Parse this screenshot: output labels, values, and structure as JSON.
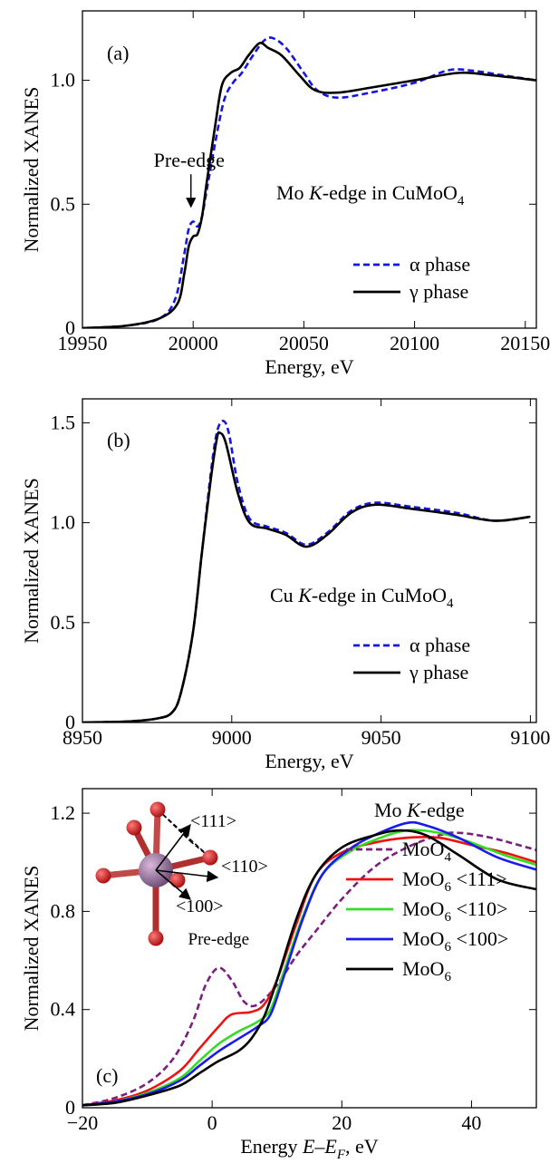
{
  "charts": [
    {
      "id": "a",
      "panel_label": "(a)",
      "type": "line",
      "xlabel": "Energy, eV",
      "ylabel": "Normalized XANES",
      "xlim": [
        19950,
        20155
      ],
      "ylim": [
        0,
        1.28
      ],
      "xticks": [
        19950,
        20000,
        20050,
        20100,
        20150
      ],
      "xtick_labels": [
        "19950",
        "20000",
        "20050",
        "20100",
        "20150"
      ],
      "yticks": [
        0,
        0.5,
        1.0
      ],
      "ytick_labels": [
        "0",
        "0.5",
        "1.0"
      ],
      "text": {
        "prefix": "Mo ",
        "italic": "K",
        "mid": "-edge in CuMoO",
        "sub": "4"
      },
      "annotation": {
        "text": "Pre-edge",
        "x": 19999,
        "y": 0.46
      },
      "legend": [
        {
          "greek": "α",
          "label": " phase",
          "color": "#1515e0",
          "dash": true
        },
        {
          "greek": "γ",
          "label": " phase",
          "color": "#000000",
          "dash": false
        }
      ],
      "series": [
        {
          "name": "α phase",
          "color": "#1515e0",
          "dash": true,
          "points": [
            [
              19950,
              0
            ],
            [
              19970,
              0.01
            ],
            [
              19985,
              0.04
            ],
            [
              19992,
              0.12
            ],
            [
              19996,
              0.3
            ],
            [
              19998,
              0.4
            ],
            [
              20000,
              0.43
            ],
            [
              20002,
              0.41
            ],
            [
              20004,
              0.45
            ],
            [
              20006,
              0.55
            ],
            [
              20010,
              0.75
            ],
            [
              20014,
              0.92
            ],
            [
              20018,
              0.99
            ],
            [
              20022,
              1.03
            ],
            [
              20027,
              1.1
            ],
            [
              20032,
              1.16
            ],
            [
              20036,
              1.17
            ],
            [
              20042,
              1.13
            ],
            [
              20050,
              1.03
            ],
            [
              20056,
              0.96
            ],
            [
              20065,
              0.93
            ],
            [
              20080,
              0.95
            ],
            [
              20100,
              0.99
            ],
            [
              20115,
              1.04
            ],
            [
              20125,
              1.04
            ],
            [
              20140,
              1.02
            ],
            [
              20155,
              1.0
            ]
          ]
        },
        {
          "name": "γ phase",
          "color": "#000000",
          "dash": false,
          "points": [
            [
              19950,
              0
            ],
            [
              19970,
              0.01
            ],
            [
              19985,
              0.04
            ],
            [
              19993,
              0.1
            ],
            [
              19996,
              0.22
            ],
            [
              19998,
              0.33
            ],
            [
              20000,
              0.37
            ],
            [
              20002,
              0.38
            ],
            [
              20004,
              0.45
            ],
            [
              20006,
              0.58
            ],
            [
              20010,
              0.82
            ],
            [
              20013,
              0.98
            ],
            [
              20017,
              1.03
            ],
            [
              20021,
              1.05
            ],
            [
              20025,
              1.1
            ],
            [
              20030,
              1.15
            ],
            [
              20034,
              1.13
            ],
            [
              20040,
              1.1
            ],
            [
              20048,
              1.02
            ],
            [
              20055,
              0.96
            ],
            [
              20065,
              0.95
            ],
            [
              20080,
              0.97
            ],
            [
              20100,
              1.0
            ],
            [
              20120,
              1.03
            ],
            [
              20135,
              1.02
            ],
            [
              20155,
              1.0
            ]
          ]
        }
      ]
    },
    {
      "id": "b",
      "panel_label": "(b)",
      "type": "line",
      "xlabel": "Energy, eV",
      "ylabel": "Normalized XANES",
      "xlim": [
        8950,
        9102
      ],
      "ylim": [
        0,
        1.62
      ],
      "xticks": [
        8950,
        9000,
        9050,
        9100
      ],
      "xtick_labels": [
        "8950",
        "9000",
        "9050",
        "9100"
      ],
      "yticks": [
        0,
        0.5,
        1.0,
        1.5
      ],
      "ytick_labels": [
        "0",
        "0.5",
        "1.0",
        "1.5"
      ],
      "text": {
        "prefix": "Cu ",
        "italic": "K",
        "mid": "-edge in CuMoO",
        "sub": "4"
      },
      "legend": [
        {
          "greek": "α",
          "label": " phase",
          "color": "#1515e0",
          "dash": true
        },
        {
          "greek": "γ",
          "label": " phase",
          "color": "#000000",
          "dash": false
        }
      ],
      "series": [
        {
          "name": "α phase",
          "color": "#1515e0",
          "dash": true,
          "points": [
            [
              8950,
              0
            ],
            [
              8965,
              0.005
            ],
            [
              8975,
              0.02
            ],
            [
              8980,
              0.05
            ],
            [
              8983,
              0.15
            ],
            [
              8987,
              0.45
            ],
            [
              8990,
              0.85
            ],
            [
              8993,
              1.25
            ],
            [
              8995,
              1.45
            ],
            [
              8997,
              1.51
            ],
            [
              8999,
              1.45
            ],
            [
              9002,
              1.2
            ],
            [
              9006,
              1.02
            ],
            [
              9012,
              0.98
            ],
            [
              9018,
              0.95
            ],
            [
              9025,
              0.89
            ],
            [
              9032,
              0.95
            ],
            [
              9040,
              1.06
            ],
            [
              9048,
              1.1
            ],
            [
              9060,
              1.08
            ],
            [
              9075,
              1.05
            ],
            [
              9088,
              1.01
            ],
            [
              9100,
              1.03
            ]
          ]
        },
        {
          "name": "γ phase",
          "color": "#000000",
          "dash": false,
          "points": [
            [
              8950,
              0
            ],
            [
              8965,
              0.005
            ],
            [
              8975,
              0.02
            ],
            [
              8980,
              0.05
            ],
            [
              8983,
              0.15
            ],
            [
              8987,
              0.45
            ],
            [
              8990,
              0.85
            ],
            [
              8993,
              1.22
            ],
            [
              8995,
              1.42
            ],
            [
              8996,
              1.45
            ],
            [
              8998,
              1.4
            ],
            [
              9002,
              1.15
            ],
            [
              9006,
              1.0
            ],
            [
              9012,
              0.97
            ],
            [
              9018,
              0.94
            ],
            [
              9025,
              0.88
            ],
            [
              9032,
              0.94
            ],
            [
              9040,
              1.05
            ],
            [
              9048,
              1.09
            ],
            [
              9060,
              1.07
            ],
            [
              9075,
              1.04
            ],
            [
              9088,
              1.01
            ],
            [
              9100,
              1.03
            ]
          ]
        }
      ]
    },
    {
      "id": "c",
      "panel_label": "(c)",
      "type": "line",
      "xlabel_parts": {
        "prefix": "Energy ",
        "italic": "E–E",
        "sub": "F",
        "suffix": ", eV"
      },
      "ylabel": "Normalized XANES",
      "xlim": [
        -20,
        50
      ],
      "ylim": [
        0,
        1.3
      ],
      "xticks": [
        -20,
        0,
        20,
        40
      ],
      "xtick_labels": [
        "−20",
        "0",
        "20",
        "40"
      ],
      "yticks": [
        0,
        0.4,
        0.8,
        1.2
      ],
      "ytick_labels": [
        "0",
        "0.4",
        "0.8",
        "1.2"
      ],
      "text": {
        "prefix": "Mo ",
        "italic": "K",
        "mid": "-edge",
        "sub": ""
      },
      "annotation": {
        "text": "Pre-edge",
        "x": 1,
        "y": 0.62
      },
      "inset_labels": [
        "<111>",
        "<110>",
        "<100>"
      ],
      "legend": [
        {
          "name": "MoO",
          "sub": "4",
          "dir": "",
          "color": "#7b1f7e",
          "dash": true
        },
        {
          "name": "MoO",
          "sub": "6",
          "dir": "<111>",
          "color": "#ee1111",
          "dash": false
        },
        {
          "name": "MoO",
          "sub": "6",
          "dir": "<110>",
          "color": "#33dd22",
          "dash": false
        },
        {
          "name": "MoO",
          "sub": "6",
          "dir": "<100>",
          "color": "#1a1aee",
          "dash": false
        },
        {
          "name": "MoO",
          "sub": "6",
          "dir": "",
          "color": "#000000",
          "dash": false
        }
      ],
      "series": [
        {
          "name": "MoO4",
          "color": "#7b1f7e",
          "dash": true,
          "points": [
            [
              -20,
              0.01
            ],
            [
              -15,
              0.04
            ],
            [
              -10,
              0.1
            ],
            [
              -6,
              0.2
            ],
            [
              -3,
              0.35
            ],
            [
              -1,
              0.5
            ],
            [
              1,
              0.57
            ],
            [
              3,
              0.52
            ],
            [
              5,
              0.43
            ],
            [
              7,
              0.42
            ],
            [
              10,
              0.5
            ],
            [
              13,
              0.62
            ],
            [
              16,
              0.72
            ],
            [
              20,
              0.85
            ],
            [
              25,
              0.98
            ],
            [
              30,
              1.06
            ],
            [
              35,
              1.11
            ],
            [
              38,
              1.12
            ],
            [
              43,
              1.1
            ],
            [
              50,
              1.05
            ]
          ]
        },
        {
          "name": "MoO6 <111>",
          "color": "#ee1111",
          "dash": false,
          "points": [
            [
              -20,
              0.01
            ],
            [
              -15,
              0.03
            ],
            [
              -10,
              0.07
            ],
            [
              -5,
              0.15
            ],
            [
              -2,
              0.24
            ],
            [
              1,
              0.33
            ],
            [
              3,
              0.38
            ],
            [
              6,
              0.39
            ],
            [
              8,
              0.42
            ],
            [
              10,
              0.52
            ],
            [
              13,
              0.75
            ],
            [
              16,
              0.95
            ],
            [
              20,
              1.04
            ],
            [
              25,
              1.08
            ],
            [
              30,
              1.1
            ],
            [
              35,
              1.1
            ],
            [
              40,
              1.07
            ],
            [
              45,
              1.04
            ],
            [
              50,
              1.0
            ]
          ]
        },
        {
          "name": "MoO6 <110>",
          "color": "#33dd22",
          "dash": false,
          "points": [
            [
              -20,
              0.01
            ],
            [
              -15,
              0.025
            ],
            [
              -10,
              0.06
            ],
            [
              -5,
              0.12
            ],
            [
              -2,
              0.19
            ],
            [
              1,
              0.26
            ],
            [
              4,
              0.31
            ],
            [
              7,
              0.35
            ],
            [
              9,
              0.4
            ],
            [
              11,
              0.55
            ],
            [
              14,
              0.78
            ],
            [
              17,
              0.95
            ],
            [
              21,
              1.04
            ],
            [
              25,
              1.09
            ],
            [
              30,
              1.13
            ],
            [
              35,
              1.12
            ],
            [
              40,
              1.08
            ],
            [
              45,
              1.03
            ],
            [
              50,
              0.99
            ]
          ]
        },
        {
          "name": "MoO6 <100>",
          "color": "#1a1aee",
          "dash": false,
          "points": [
            [
              -20,
              0.01
            ],
            [
              -15,
              0.025
            ],
            [
              -10,
              0.055
            ],
            [
              -5,
              0.11
            ],
            [
              -2,
              0.17
            ],
            [
              1,
              0.23
            ],
            [
              4,
              0.28
            ],
            [
              7,
              0.33
            ],
            [
              9,
              0.38
            ],
            [
              11,
              0.53
            ],
            [
              14,
              0.77
            ],
            [
              17,
              0.95
            ],
            [
              21,
              1.05
            ],
            [
              25,
              1.11
            ],
            [
              30,
              1.16
            ],
            [
              33,
              1.15
            ],
            [
              38,
              1.1
            ],
            [
              44,
              1.02
            ],
            [
              50,
              0.97
            ]
          ]
        },
        {
          "name": "MoO6",
          "color": "#000000",
          "dash": false,
          "points": [
            [
              -20,
              0.01
            ],
            [
              -15,
              0.02
            ],
            [
              -10,
              0.05
            ],
            [
              -5,
              0.09
            ],
            [
              -2,
              0.14
            ],
            [
              1,
              0.19
            ],
            [
              4,
              0.23
            ],
            [
              6,
              0.28
            ],
            [
              8,
              0.37
            ],
            [
              10,
              0.52
            ],
            [
              13,
              0.77
            ],
            [
              16,
              0.95
            ],
            [
              20,
              1.06
            ],
            [
              25,
              1.11
            ],
            [
              29,
              1.13
            ],
            [
              33,
              1.11
            ],
            [
              38,
              1.03
            ],
            [
              44,
              0.93
            ],
            [
              50,
              0.89
            ]
          ]
        }
      ]
    }
  ]
}
